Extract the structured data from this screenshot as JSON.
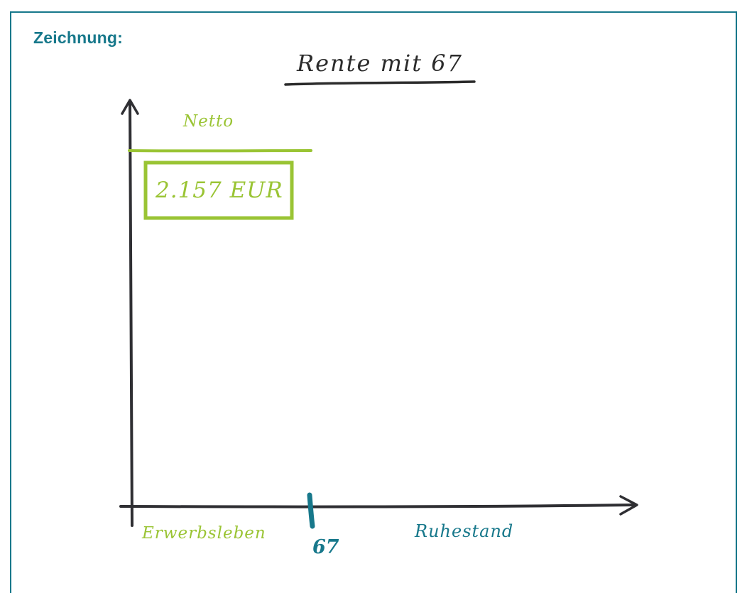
{
  "heading": "Zeichnung:",
  "title": "Rente mit 67",
  "netto_label": "Netto",
  "amount_label": "2.157 EUR",
  "phase_work": "Erwerbsleben",
  "retirement_age": "67",
  "phase_retirement": "Ruhestand",
  "colors": {
    "teal": "#17788b",
    "green": "#9ac434",
    "ink": "#2b2b2b"
  }
}
